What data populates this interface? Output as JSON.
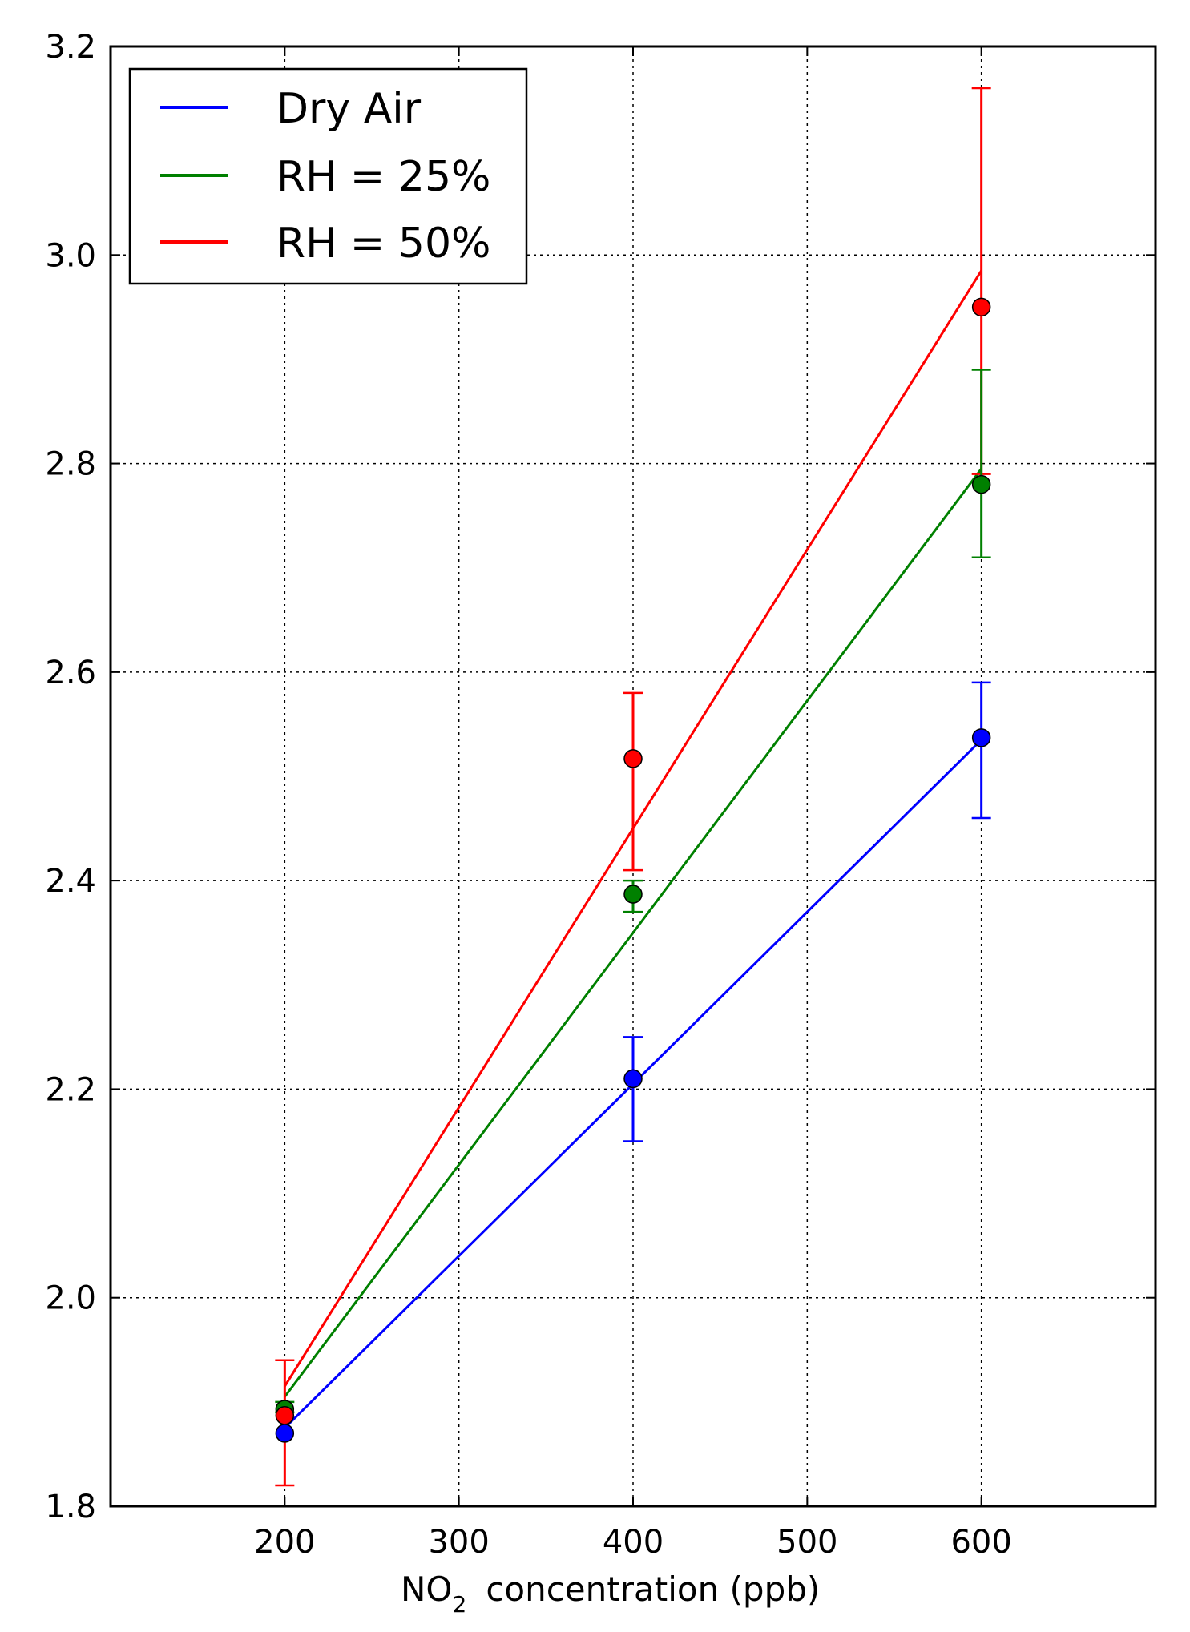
{
  "chart_data": {
    "type": "line",
    "title": "",
    "xlabel": {
      "prefix": "NO",
      "subscript": "2",
      "suffix": "concentration (ppb)"
    },
    "ylabel": "",
    "xlim": [
      100,
      700
    ],
    "ylim": [
      1.8,
      3.2
    ],
    "xticks": [
      200,
      300,
      400,
      500,
      600
    ],
    "xtick_labels": [
      "200",
      "300",
      "400",
      "500",
      "600"
    ],
    "yticks": [
      1.8,
      2.0,
      2.2,
      2.4,
      2.6,
      2.8,
      3.0,
      3.2
    ],
    "ytick_labels": [
      "1.8",
      "2.0",
      "2.2",
      "2.4",
      "2.6",
      "2.8",
      "3.0",
      "3.2"
    ],
    "grid": true,
    "legend": {
      "position": "top-left"
    },
    "x": [
      200,
      400,
      600
    ],
    "series": [
      {
        "name": "Dry Air",
        "color": "#0000ff",
        "values": [
          1.87,
          2.21,
          2.537
        ],
        "error_low": [
          1.87,
          2.15,
          2.46
        ],
        "error_high": [
          1.87,
          2.25,
          2.59
        ],
        "fit": [
          1.875,
          2.205,
          2.535
        ]
      },
      {
        "name": "RH = 25%",
        "color": "#008000",
        "values": [
          1.893,
          2.387,
          2.78
        ],
        "error_low": [
          1.89,
          2.37,
          2.71
        ],
        "error_high": [
          1.9,
          2.4,
          2.89
        ],
        "fit": [
          1.905,
          2.35,
          2.795
        ]
      },
      {
        "name": "RH = 50%",
        "color": "#ff0000",
        "values": [
          1.887,
          2.517,
          2.95
        ],
        "error_low": [
          1.82,
          2.41,
          2.79
        ],
        "error_high": [
          1.94,
          2.58,
          3.16
        ],
        "fit": [
          1.915,
          2.45,
          2.985
        ]
      }
    ]
  }
}
